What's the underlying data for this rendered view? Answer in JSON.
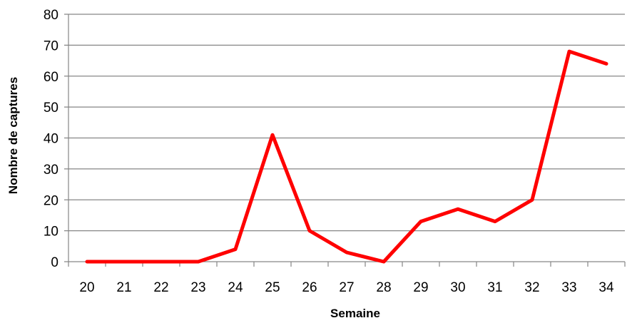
{
  "chart_data": {
    "type": "line",
    "title": "",
    "xlabel": "Semaine",
    "ylabel": "Nombre de captures",
    "categories": [
      "20",
      "21",
      "22",
      "23",
      "24",
      "25",
      "26",
      "27",
      "28",
      "29",
      "30",
      "31",
      "32",
      "33",
      "34"
    ],
    "series": [
      {
        "values": [
          0,
          0,
          0,
          0,
          4,
          41,
          10,
          3,
          0,
          13,
          17,
          13,
          20,
          68,
          64
        ],
        "color": "#ff0000"
      }
    ],
    "ylim": [
      0,
      80
    ],
    "yticks": [
      0,
      10,
      20,
      30,
      40,
      50,
      60,
      70,
      80
    ],
    "grid": true,
    "legend": "none"
  }
}
